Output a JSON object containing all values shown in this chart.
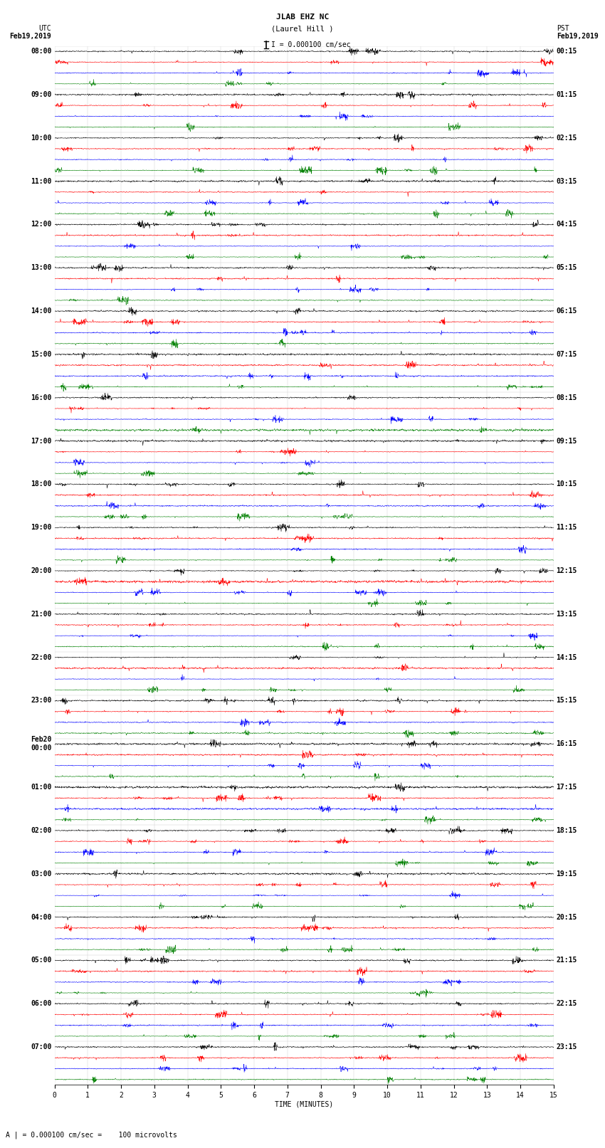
{
  "title_line1": "JLAB EHZ NC",
  "title_line2": "(Laurel Hill )",
  "title_scale": "I = 0.000100 cm/sec",
  "left_header_line1": "UTC",
  "left_header_line2": "Feb19,2019",
  "right_header_line1": "PST",
  "right_header_line2": "Feb19,2019",
  "xlabel": "TIME (MINUTES)",
  "bottom_label": "A | = 0.000100 cm/sec =    100 microvolts",
  "utc_times": [
    "08:00",
    "09:00",
    "10:00",
    "11:00",
    "12:00",
    "13:00",
    "14:00",
    "15:00",
    "16:00",
    "17:00",
    "18:00",
    "19:00",
    "20:00",
    "21:00",
    "22:00",
    "23:00",
    "Feb20\n00:00",
    "01:00",
    "02:00",
    "03:00",
    "04:00",
    "05:00",
    "06:00",
    "07:00"
  ],
  "pst_times": [
    "00:15",
    "01:15",
    "02:15",
    "03:15",
    "04:15",
    "05:15",
    "06:15",
    "07:15",
    "08:15",
    "09:15",
    "10:15",
    "11:15",
    "12:15",
    "13:15",
    "14:15",
    "15:15",
    "16:15",
    "17:15",
    "18:15",
    "19:15",
    "20:15",
    "21:15",
    "22:15",
    "23:15"
  ],
  "colors": [
    "black",
    "red",
    "blue",
    "green"
  ],
  "n_groups": 24,
  "traces_per_group": 4,
  "time_points": 2000,
  "x_min": 0,
  "x_max": 15,
  "x_ticks": [
    0,
    1,
    2,
    3,
    4,
    5,
    6,
    7,
    8,
    9,
    10,
    11,
    12,
    13,
    14,
    15
  ],
  "fig_width": 8.5,
  "fig_height": 16.13,
  "bg_color": "white",
  "trace_linewidth": 0.4,
  "font_size_header": 7,
  "font_size_axis": 7,
  "font_size_label": 7,
  "font_size_title": 8,
  "dpi": 100
}
